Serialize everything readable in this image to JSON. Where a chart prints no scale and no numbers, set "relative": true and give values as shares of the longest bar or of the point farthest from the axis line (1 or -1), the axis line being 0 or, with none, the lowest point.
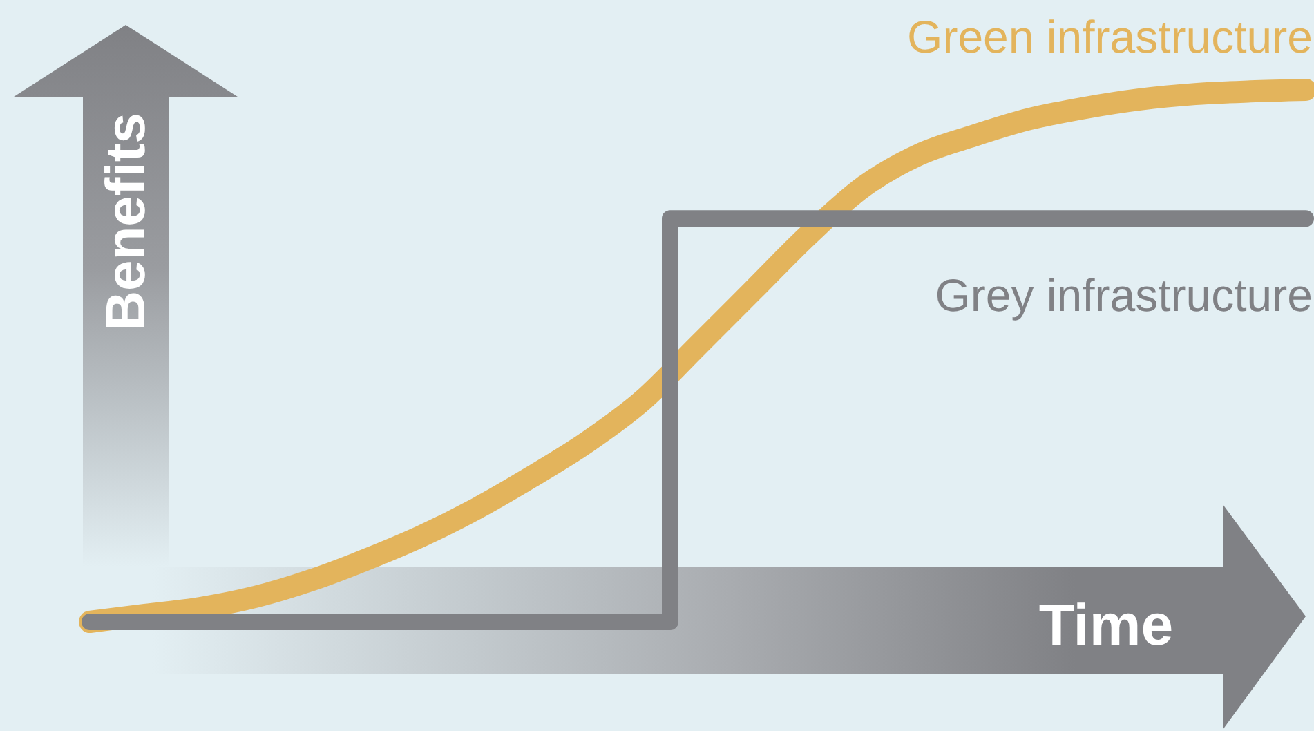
{
  "chart_data": {
    "type": "line",
    "relative": true,
    "xlabel": "Time",
    "ylabel": "Benefits",
    "categories": [
      null,
      null,
      null,
      null,
      null,
      null,
      null,
      null,
      null,
      null,
      null,
      null,
      null,
      null,
      null,
      null,
      null,
      null,
      null,
      null,
      null,
      null,
      null
    ],
    "series": [
      {
        "name": "Green infrastructure",
        "color": "#e3b45c",
        "values": [
          0,
          0.013,
          0.026,
          0.047,
          0.078,
          0.117,
          0.161,
          0.213,
          0.273,
          0.338,
          0.416,
          0.519,
          0.623,
          0.727,
          0.818,
          0.878,
          0.914,
          0.945,
          0.966,
          0.982,
          0.992,
          0.997,
          1
        ]
      },
      {
        "name": "Grey infrastructure",
        "type": "step",
        "color": "#808185",
        "values": [
          0,
          0,
          0,
          0,
          0,
          0,
          0,
          0,
          0,
          0,
          0,
          0.758,
          0.758,
          0.758,
          0.758,
          0.758,
          0.758,
          0.758,
          0.758,
          0.758,
          0.758,
          0.758,
          0.758
        ]
      }
    ]
  }
}
